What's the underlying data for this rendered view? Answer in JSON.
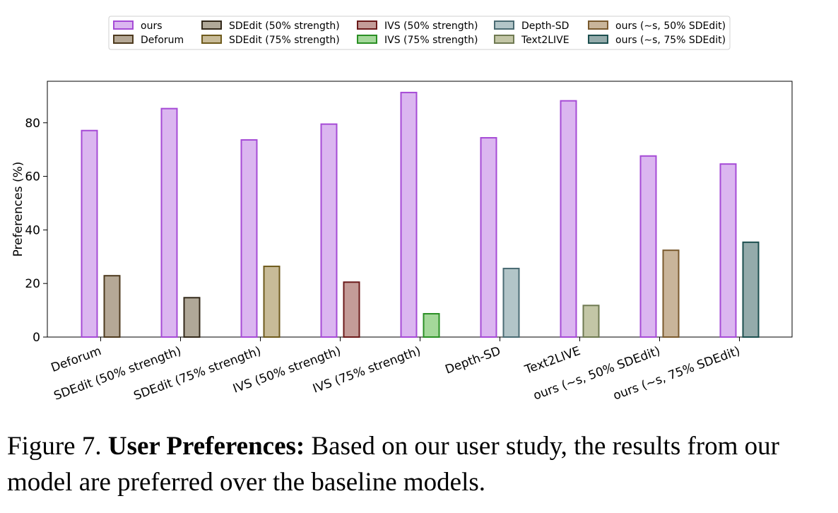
{
  "chart_data": {
    "type": "bar",
    "ylabel": "Preferences (%)",
    "xlabel": "",
    "ylim": [
      0,
      95.5
    ],
    "yticks": [
      0,
      20,
      40,
      60,
      80
    ],
    "grid": false,
    "legend_position": "top-center",
    "categories": [
      "Deforum",
      "SDEdit (50% strength)",
      "SDEdit (75% strength)",
      "IVS (50% strength)",
      "IVS (75% strength)",
      "Depth-SD",
      "Text2LIVE",
      "ours (∼s, 50% SDEdit)",
      "ours (∼s, 75% SDEdit)"
    ],
    "ours": {
      "name": "ours",
      "values": [
        77.1,
        85.3,
        73.6,
        79.5,
        91.3,
        74.4,
        88.2,
        67.6,
        64.6
      ],
      "fill": "#dbb6f0",
      "stroke": "#a64bd6"
    },
    "baselines": [
      {
        "name": "Deforum",
        "value": 22.9,
        "fill": "#b5a896",
        "stroke": "#4d3a1e"
      },
      {
        "name": "SDEdit (50% strength)",
        "value": 14.7,
        "fill": "#b0a898",
        "stroke": "#33291a"
      },
      {
        "name": "SDEdit (75% strength)",
        "value": 26.4,
        "fill": "#c8bb98",
        "stroke": "#6e5a1c"
      },
      {
        "name": "IVS (50% strength)",
        "value": 20.5,
        "fill": "#c49c98",
        "stroke": "#6b1a1a"
      },
      {
        "name": "IVS (75% strength)",
        "value": 8.7,
        "fill": "#a4d89a",
        "stroke": "#2a8f24"
      },
      {
        "name": "Depth-SD",
        "value": 25.6,
        "fill": "#b2c5c8",
        "stroke": "#4a6b73"
      },
      {
        "name": "Text2LIVE",
        "value": 11.8,
        "fill": "#c3c6a6",
        "stroke": "#6f7a52"
      },
      {
        "name": "ours (∼s, 50% SDEdit)",
        "value": 32.4,
        "fill": "#c9b59a",
        "stroke": "#7a5a2e"
      },
      {
        "name": "ours (∼s, 75% SDEdit)",
        "value": 35.4,
        "fill": "#94abab",
        "stroke": "#1c4f4f"
      }
    ],
    "legend": [
      {
        "label": "ours",
        "fill": "#dbb6f0",
        "stroke": "#a64bd6"
      },
      {
        "label": "Deforum",
        "fill": "#b5a896",
        "stroke": "#4d3a1e"
      },
      {
        "label": "SDEdit (50% strength)",
        "fill": "#b0a898",
        "stroke": "#33291a"
      },
      {
        "label": "SDEdit (75% strength)",
        "fill": "#c8bb98",
        "stroke": "#6e5a1c"
      },
      {
        "label": "IVS (50% strength)",
        "fill": "#c49c98",
        "stroke": "#6b1a1a"
      },
      {
        "label": "IVS (75% strength)",
        "fill": "#a4d89a",
        "stroke": "#2a8f24"
      },
      {
        "label": "Depth-SD",
        "fill": "#b2c5c8",
        "stroke": "#4a6b73"
      },
      {
        "label": "Text2LIVE",
        "fill": "#c3c6a6",
        "stroke": "#6f7a52"
      },
      {
        "label": "ours (∼s, 50% SDEdit)",
        "fill": "#c9b59a",
        "stroke": "#7a5a2e"
      },
      {
        "label": "ours (∼s, 75% SDEdit)",
        "fill": "#94abab",
        "stroke": "#1c4f4f"
      }
    ]
  },
  "caption": {
    "figure_number": "Figure 7.",
    "bold_title": "User Preferences:",
    "text": "Based on our user study, the results from our model are preferred over the baseline models."
  }
}
